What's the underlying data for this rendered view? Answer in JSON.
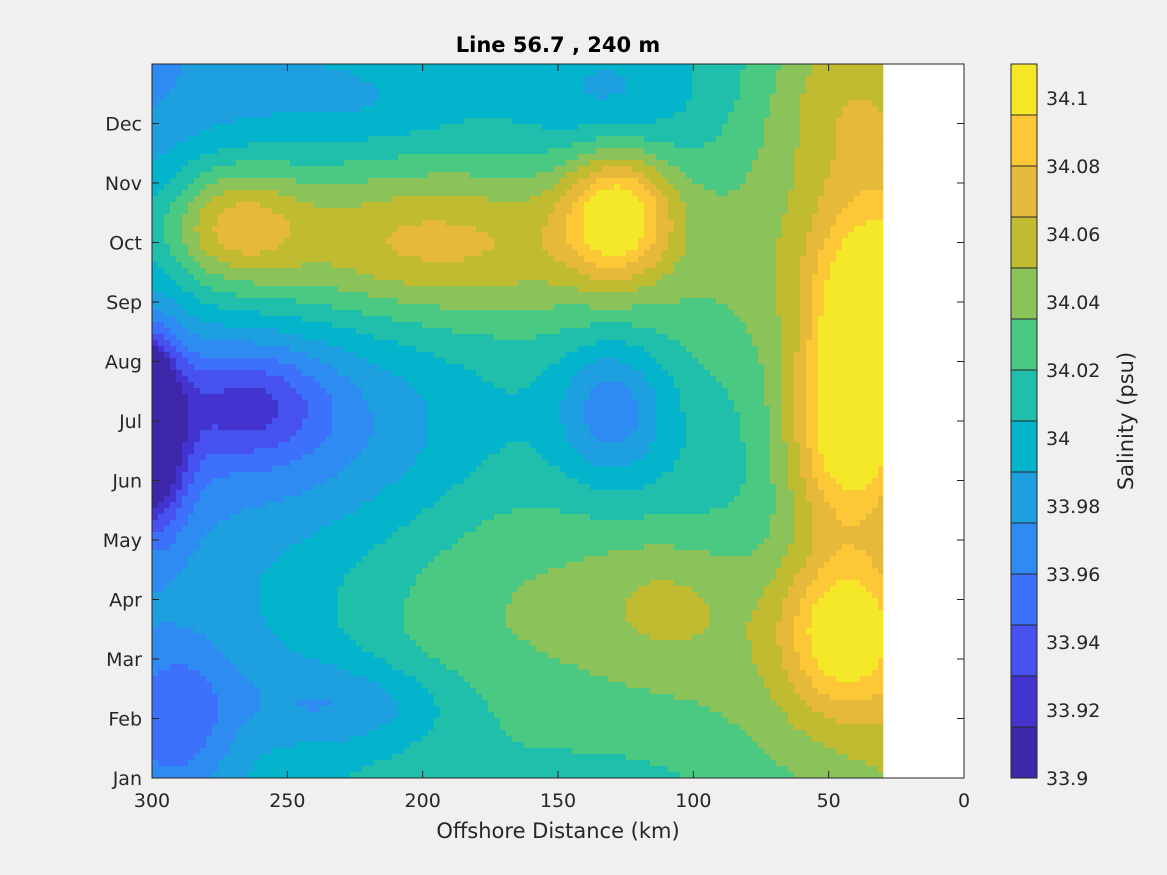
{
  "chart_data": {
    "type": "heatmap",
    "title": "Line 56.7 , 240 m",
    "xlabel": "Offshore Distance (km)",
    "ylabel": "",
    "x_reversed": true,
    "xlim": [
      300,
      0
    ],
    "xticks": [
      300,
      250,
      200,
      150,
      100,
      50,
      0
    ],
    "yticks": [
      "Jan",
      "Feb",
      "Mar",
      "Apr",
      "May",
      "Jun",
      "Jul",
      "Aug",
      "Sep",
      "Oct",
      "Nov",
      "Dec"
    ],
    "colorbar": {
      "label": "Salinity (psu)",
      "range": [
        33.9,
        34.11
      ],
      "levels": 14,
      "ticks": [
        "33.9",
        "33.92",
        "33.94",
        "33.96",
        "33.98",
        "34",
        "34.02",
        "34.04",
        "34.06",
        "34.08",
        "34.1"
      ],
      "colors": [
        "#3e26a8",
        "#4434cf",
        "#4651f0",
        "#3d71fb",
        "#2d8bf2",
        "#1e9fe0",
        "#04b3cc",
        "#20bfab",
        "#4ac982",
        "#8ac35a",
        "#c1bb32",
        "#e7b93b",
        "#fcc838",
        "#f5e829"
      ]
    },
    "data_extent_km": [
      300,
      30
    ],
    "anomalies": [
      {
        "x": 300,
        "m": 6.0,
        "value": -0.13,
        "sx": 6,
        "sm": 1.0
      },
      {
        "x": 298,
        "m": 5.8,
        "value": -0.07,
        "sx": 12,
        "sm": 1.6
      },
      {
        "x": 265,
        "m": 6.3,
        "value": -0.045,
        "sx": 28,
        "sm": 0.9
      },
      {
        "x": 235,
        "m": 6.2,
        "value": -0.03,
        "sx": 60,
        "sm": 2.0
      },
      {
        "x": 290,
        "m": 1.0,
        "value": -0.04,
        "sx": 20,
        "sm": 1.2
      },
      {
        "x": 225,
        "m": 1.2,
        "value": -0.035,
        "sx": 40,
        "sm": 0.8
      },
      {
        "x": 260,
        "m": 2.0,
        "value": -0.02,
        "sx": 50,
        "sm": 1.4
      },
      {
        "x": 130,
        "m": 6.2,
        "value": -0.045,
        "sx": 20,
        "sm": 1.2
      },
      {
        "x": 160,
        "m": 4.0,
        "value": 0.02,
        "sx": 50,
        "sm": 2.0
      },
      {
        "x": 270,
        "m": 9.3,
        "value": 0.055,
        "sx": 25,
        "sm": 1.0
      },
      {
        "x": 200,
        "m": 9.0,
        "value": 0.045,
        "sx": 70,
        "sm": 1.2
      },
      {
        "x": 128,
        "m": 9.5,
        "value": 0.08,
        "sx": 20,
        "sm": 1.1
      },
      {
        "x": 35,
        "m": 7.5,
        "value": 0.085,
        "sx": 22,
        "sm": 2.0
      },
      {
        "x": 45,
        "m": 2.5,
        "value": 0.065,
        "sx": 22,
        "sm": 1.3
      },
      {
        "x": 45,
        "m": 5.5,
        "value": 0.06,
        "sx": 22,
        "sm": 1.5
      },
      {
        "x": 110,
        "m": 3.0,
        "value": 0.025,
        "sx": 30,
        "sm": 1.2
      },
      {
        "x": 45,
        "m": 11.5,
        "value": 0.03,
        "sx": 30,
        "sm": 1.5
      },
      {
        "x": 130,
        "m": 11.3,
        "value": -0.02,
        "sx": 30,
        "sm": 1.0
      },
      {
        "x": 220,
        "m": 11.3,
        "value": -0.015,
        "sx": 40,
        "sm": 0.8
      }
    ]
  }
}
